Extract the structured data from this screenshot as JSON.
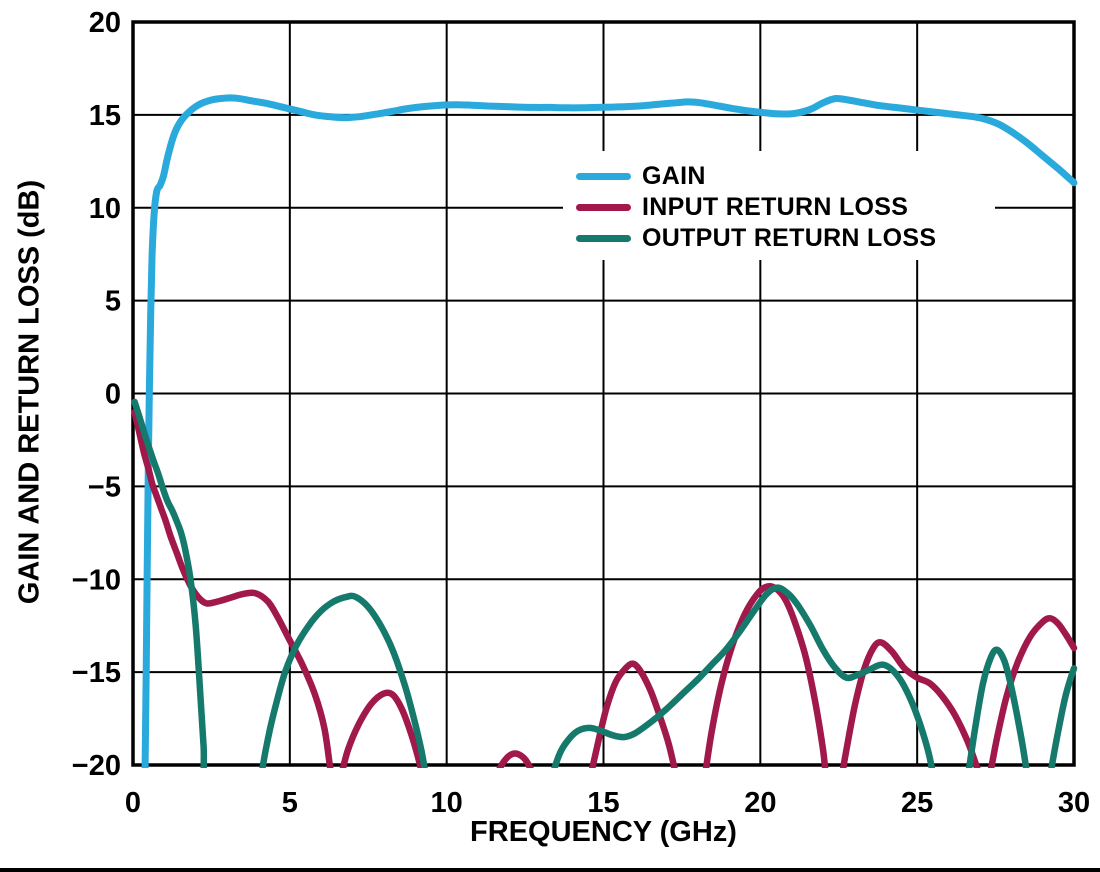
{
  "figure": {
    "background": "#ffffff",
    "axis_color": "#000000",
    "grid_color": "#000000"
  },
  "legend": {
    "items": [
      {
        "label": "GAIN",
        "color": "#29A9DC"
      },
      {
        "label": "INPUT RETURN LOSS",
        "color": "#A1184A"
      },
      {
        "label": "OUTPUT RETURN LOSS",
        "color": "#15796C"
      }
    ]
  },
  "chart_data": {
    "type": "line",
    "title": "",
    "xlabel": "FREQUENCY (GHz)",
    "ylabel": "GAIN AND RETURN LOSS (dB)",
    "xlim": [
      0,
      30
    ],
    "ylim": [
      -20,
      20
    ],
    "x_ticks": [
      0,
      5,
      10,
      15,
      20,
      25,
      30
    ],
    "y_ticks": [
      20,
      15,
      10,
      5,
      0,
      -5,
      -10,
      -15,
      -20
    ],
    "x_tick_labels": [
      "0",
      "5",
      "10",
      "15",
      "20",
      "25",
      "30"
    ],
    "y_tick_labels": [
      "20",
      "15",
      "10",
      "5",
      "0",
      "−5",
      "−10",
      "−15",
      "−20"
    ],
    "grid": true,
    "legend_position": "upper-center-right",
    "series": [
      {
        "name": "GAIN",
        "color": "#29A9DC",
        "width": 7,
        "points": [
          [
            0.38,
            -21
          ],
          [
            0.42,
            -15
          ],
          [
            0.45,
            -10
          ],
          [
            0.48,
            -5
          ],
          [
            0.52,
            0
          ],
          [
            0.56,
            4
          ],
          [
            0.61,
            7.5
          ],
          [
            0.68,
            9.8
          ],
          [
            0.76,
            10.9
          ],
          [
            0.86,
            11.2
          ],
          [
            0.97,
            11.7
          ],
          [
            1.1,
            12.7
          ],
          [
            1.3,
            13.9
          ],
          [
            1.5,
            14.6
          ],
          [
            1.75,
            15.1
          ],
          [
            2.1,
            15.55
          ],
          [
            2.5,
            15.8
          ],
          [
            2.9,
            15.9
          ],
          [
            3.3,
            15.9
          ],
          [
            3.8,
            15.75
          ],
          [
            4.3,
            15.6
          ],
          [
            4.8,
            15.4
          ],
          [
            5.3,
            15.2
          ],
          [
            5.8,
            15.0
          ],
          [
            6.3,
            14.9
          ],
          [
            6.8,
            14.85
          ],
          [
            7.3,
            14.92
          ],
          [
            7.8,
            15.05
          ],
          [
            8.3,
            15.2
          ],
          [
            8.8,
            15.35
          ],
          [
            9.3,
            15.45
          ],
          [
            9.8,
            15.52
          ],
          [
            10.3,
            15.55
          ],
          [
            10.8,
            15.52
          ],
          [
            11.3,
            15.48
          ],
          [
            11.8,
            15.45
          ],
          [
            12.3,
            15.42
          ],
          [
            12.8,
            15.4
          ],
          [
            13.3,
            15.4
          ],
          [
            13.8,
            15.38
          ],
          [
            14.3,
            15.38
          ],
          [
            14.8,
            15.4
          ],
          [
            15.3,
            15.42
          ],
          [
            15.8,
            15.45
          ],
          [
            16.3,
            15.5
          ],
          [
            16.8,
            15.58
          ],
          [
            17.3,
            15.65
          ],
          [
            17.7,
            15.7
          ],
          [
            18.1,
            15.65
          ],
          [
            18.6,
            15.5
          ],
          [
            19.1,
            15.35
          ],
          [
            19.6,
            15.22
          ],
          [
            20.1,
            15.12
          ],
          [
            20.6,
            15.05
          ],
          [
            21.1,
            15.08
          ],
          [
            21.6,
            15.3
          ],
          [
            22.0,
            15.65
          ],
          [
            22.4,
            15.88
          ],
          [
            22.8,
            15.8
          ],
          [
            23.3,
            15.65
          ],
          [
            23.8,
            15.5
          ],
          [
            24.3,
            15.4
          ],
          [
            24.8,
            15.3
          ],
          [
            25.3,
            15.2
          ],
          [
            25.8,
            15.1
          ],
          [
            26.3,
            15.0
          ],
          [
            26.8,
            14.9
          ],
          [
            27.2,
            14.75
          ],
          [
            27.6,
            14.5
          ],
          [
            28.0,
            14.1
          ],
          [
            28.5,
            13.5
          ],
          [
            29.0,
            12.8
          ],
          [
            29.5,
            12.1
          ],
          [
            30.0,
            11.35
          ]
        ]
      },
      {
        "name": "INPUT RETURN LOSS",
        "color": "#A1184A",
        "width": 6.5,
        "points": [
          [
            0.05,
            -1.0
          ],
          [
            0.2,
            -2.1
          ],
          [
            0.35,
            -3.2
          ],
          [
            0.5,
            -4.1
          ],
          [
            0.62,
            -4.9
          ],
          [
            0.75,
            -5.5
          ],
          [
            0.9,
            -6.2
          ],
          [
            1.05,
            -6.9
          ],
          [
            1.2,
            -7.7
          ],
          [
            1.4,
            -8.6
          ],
          [
            1.6,
            -9.5
          ],
          [
            1.85,
            -10.4
          ],
          [
            2.1,
            -11.0
          ],
          [
            2.35,
            -11.3
          ],
          [
            2.7,
            -11.2
          ],
          [
            3.1,
            -11.0
          ],
          [
            3.5,
            -10.8
          ],
          [
            3.9,
            -10.75
          ],
          [
            4.3,
            -11.2
          ],
          [
            4.6,
            -12.0
          ],
          [
            5.0,
            -13.3
          ],
          [
            5.4,
            -14.6
          ],
          [
            5.8,
            -16.2
          ],
          [
            6.1,
            -18.0
          ],
          [
            6.3,
            -20.3
          ],
          [
            6.45,
            -21.5
          ],
          [
            6.6,
            -20.8
          ],
          [
            6.85,
            -19.2
          ],
          [
            7.2,
            -17.8
          ],
          [
            7.6,
            -16.7
          ],
          [
            8.0,
            -16.15
          ],
          [
            8.3,
            -16.25
          ],
          [
            8.6,
            -17.1
          ],
          [
            8.9,
            -18.5
          ],
          [
            9.15,
            -20.0
          ],
          [
            9.4,
            -22
          ],
          [
            9.7,
            -24
          ],
          [
            11.1,
            -23
          ],
          [
            11.45,
            -21.2
          ],
          [
            11.75,
            -20.0
          ],
          [
            12.1,
            -19.4
          ],
          [
            12.45,
            -19.6
          ],
          [
            12.7,
            -20.3
          ],
          [
            12.95,
            -21.5
          ],
          [
            13.2,
            -24
          ],
          [
            14.3,
            -24
          ],
          [
            14.55,
            -21
          ],
          [
            14.8,
            -19.0
          ],
          [
            15.1,
            -16.9
          ],
          [
            15.4,
            -15.5
          ],
          [
            15.7,
            -14.8
          ],
          [
            15.95,
            -14.55
          ],
          [
            16.2,
            -15.0
          ],
          [
            16.5,
            -16.0
          ],
          [
            16.8,
            -17.4
          ],
          [
            17.1,
            -19.0
          ],
          [
            17.35,
            -21
          ],
          [
            17.5,
            -23.5
          ],
          [
            18.0,
            -23.5
          ],
          [
            18.2,
            -21
          ],
          [
            18.45,
            -18.2
          ],
          [
            18.75,
            -15.7
          ],
          [
            19.1,
            -13.6
          ],
          [
            19.5,
            -11.9
          ],
          [
            19.9,
            -10.8
          ],
          [
            20.2,
            -10.4
          ],
          [
            20.5,
            -10.5
          ],
          [
            20.8,
            -11.1
          ],
          [
            21.1,
            -12.3
          ],
          [
            21.45,
            -14.2
          ],
          [
            21.75,
            -16.6
          ],
          [
            22.0,
            -19.2
          ],
          [
            22.2,
            -22
          ],
          [
            22.45,
            -22
          ],
          [
            22.7,
            -19.6
          ],
          [
            23.0,
            -16.9
          ],
          [
            23.3,
            -14.9
          ],
          [
            23.6,
            -13.7
          ],
          [
            23.85,
            -13.4
          ],
          [
            24.2,
            -13.9
          ],
          [
            24.6,
            -14.8
          ],
          [
            25.0,
            -15.3
          ],
          [
            25.4,
            -15.6
          ],
          [
            25.8,
            -16.3
          ],
          [
            26.2,
            -17.3
          ],
          [
            26.6,
            -18.7
          ],
          [
            26.9,
            -20.1
          ],
          [
            27.1,
            -21.3
          ],
          [
            27.3,
            -20.6
          ],
          [
            27.55,
            -18.5
          ],
          [
            27.85,
            -16.3
          ],
          [
            28.2,
            -14.5
          ],
          [
            28.6,
            -13.1
          ],
          [
            29.0,
            -12.3
          ],
          [
            29.25,
            -12.1
          ],
          [
            29.5,
            -12.4
          ],
          [
            29.75,
            -13.0
          ],
          [
            30.0,
            -13.7
          ]
        ]
      },
      {
        "name": "OUTPUT RETURN LOSS",
        "color": "#15796C",
        "width": 6.5,
        "points": [
          [
            0.05,
            -0.45
          ],
          [
            0.25,
            -1.5
          ],
          [
            0.45,
            -2.6
          ],
          [
            0.65,
            -3.6
          ],
          [
            0.82,
            -4.4
          ],
          [
            0.95,
            -5.1
          ],
          [
            1.1,
            -5.8
          ],
          [
            1.25,
            -6.3
          ],
          [
            1.4,
            -6.9
          ],
          [
            1.55,
            -7.6
          ],
          [
            1.7,
            -8.7
          ],
          [
            1.85,
            -10.2
          ],
          [
            2.0,
            -12.5
          ],
          [
            2.12,
            -15.5
          ],
          [
            2.25,
            -19
          ],
          [
            2.4,
            -23
          ],
          [
            3.85,
            -24
          ],
          [
            4.1,
            -20.5
          ],
          [
            4.3,
            -18.6
          ],
          [
            4.55,
            -16.8
          ],
          [
            4.85,
            -15.0
          ],
          [
            5.2,
            -13.6
          ],
          [
            5.6,
            -12.5
          ],
          [
            6.0,
            -11.7
          ],
          [
            6.4,
            -11.2
          ],
          [
            6.8,
            -10.95
          ],
          [
            7.1,
            -10.95
          ],
          [
            7.5,
            -11.5
          ],
          [
            7.9,
            -12.5
          ],
          [
            8.3,
            -13.9
          ],
          [
            8.7,
            -15.9
          ],
          [
            9.0,
            -17.8
          ],
          [
            9.25,
            -19.7
          ],
          [
            9.45,
            -22
          ],
          [
            9.7,
            -24
          ],
          [
            13.05,
            -23
          ],
          [
            13.3,
            -21
          ],
          [
            13.6,
            -19.4
          ],
          [
            13.9,
            -18.6
          ],
          [
            14.2,
            -18.15
          ],
          [
            14.55,
            -18.0
          ],
          [
            14.9,
            -18.15
          ],
          [
            15.3,
            -18.4
          ],
          [
            15.65,
            -18.5
          ],
          [
            16.0,
            -18.3
          ],
          [
            16.5,
            -17.7
          ],
          [
            17.0,
            -17.0
          ],
          [
            17.5,
            -16.2
          ],
          [
            18.0,
            -15.4
          ],
          [
            18.45,
            -14.6
          ],
          [
            18.9,
            -13.8
          ],
          [
            19.35,
            -12.8
          ],
          [
            19.8,
            -11.7
          ],
          [
            20.2,
            -10.8
          ],
          [
            20.55,
            -10.45
          ],
          [
            20.9,
            -10.8
          ],
          [
            21.2,
            -11.4
          ],
          [
            21.6,
            -12.5
          ],
          [
            22.0,
            -13.8
          ],
          [
            22.4,
            -14.8
          ],
          [
            22.75,
            -15.3
          ],
          [
            23.1,
            -15.15
          ],
          [
            23.5,
            -14.85
          ],
          [
            23.85,
            -14.6
          ],
          [
            24.15,
            -14.8
          ],
          [
            24.5,
            -15.5
          ],
          [
            24.85,
            -16.7
          ],
          [
            25.15,
            -18.1
          ],
          [
            25.4,
            -19.6
          ],
          [
            25.6,
            -21.5
          ],
          [
            25.8,
            -23.5
          ],
          [
            26.35,
            -23.5
          ],
          [
            26.6,
            -20.8
          ],
          [
            26.85,
            -18.0
          ],
          [
            27.1,
            -15.6
          ],
          [
            27.35,
            -14.2
          ],
          [
            27.55,
            -13.8
          ],
          [
            27.78,
            -14.4
          ],
          [
            28.0,
            -15.8
          ],
          [
            28.25,
            -17.9
          ],
          [
            28.45,
            -19.9
          ],
          [
            28.6,
            -22
          ],
          [
            28.75,
            -24
          ],
          [
            29.0,
            -23.5
          ],
          [
            29.2,
            -21
          ],
          [
            29.45,
            -18.6
          ],
          [
            29.7,
            -16.5
          ],
          [
            29.88,
            -15.4
          ],
          [
            30.0,
            -14.8
          ]
        ]
      }
    ]
  }
}
